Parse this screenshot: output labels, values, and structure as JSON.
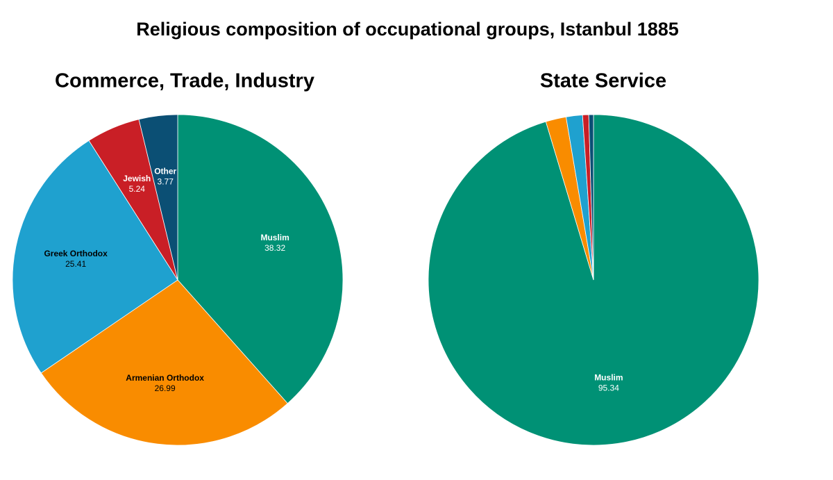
{
  "title": "Religious composition of occupational groups, Istanbul 1885",
  "chart_data": [
    {
      "type": "pie",
      "title": "Commerce, Trade, Industry",
      "categories": [
        "Muslim",
        "Armenian Orthodox",
        "Greek Orthodox",
        "Jewish",
        "Other"
      ],
      "values": [
        38.32,
        26.99,
        25.41,
        5.24,
        3.77
      ],
      "colors": [
        "#009175",
        "#f98c00",
        "#1fa1cf",
        "#c91f26",
        "#0b4f74"
      ]
    },
    {
      "type": "pie",
      "title": "State Service",
      "categories": [
        "Muslim",
        null,
        null,
        null,
        null
      ],
      "values": [
        95.34,
        2.0,
        1.6,
        0.6,
        0.46
      ],
      "colors": [
        "#009175",
        "#f98c00",
        "#1fa1cf",
        "#c91f26",
        "#0b4f74"
      ]
    }
  ]
}
